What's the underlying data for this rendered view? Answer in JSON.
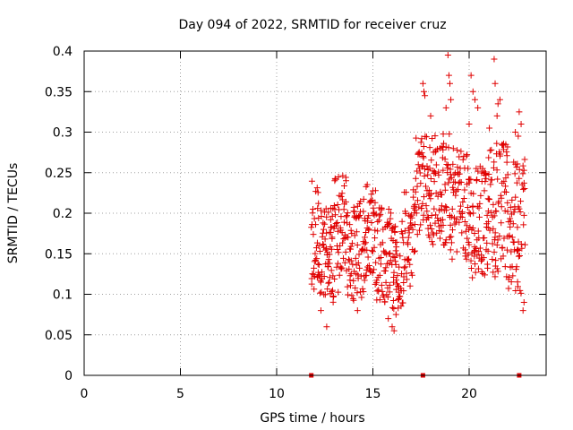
{
  "chart_data": {
    "type": "scatter",
    "title": "Day 094 of 2022, SRMTID for receiver cruz",
    "xlabel": "GPS time / hours",
    "ylabel": "SRMTID / TECUs",
    "xlim": [
      0,
      24
    ],
    "ylim": [
      0,
      0.4
    ],
    "x_ticks": [
      0,
      5,
      10,
      15,
      20
    ],
    "x_tick_labels": [
      "0",
      "5",
      "10",
      "15",
      "20"
    ],
    "y_ticks": [
      0,
      0.05,
      0.1,
      0.15,
      0.2,
      0.25,
      0.3,
      0.35,
      0.4
    ],
    "y_tick_labels": [
      "0",
      "0.05",
      "0.1",
      "0.15",
      "0.2",
      "0.25",
      "0.3",
      "0.35",
      "0.4"
    ],
    "grid": true,
    "legend": "none",
    "marker": "plus",
    "color": "#e00000",
    "series": [
      {
        "segments": [
          {
            "x_start": 11.8,
            "x_end": 12.2,
            "step": 0.02,
            "y_min": 0.1,
            "y_max": 0.24
          },
          {
            "x_start": 12.2,
            "x_end": 13.0,
            "step": 0.02,
            "y_min": 0.09,
            "y_max": 0.21
          },
          {
            "x_start": 13.0,
            "x_end": 13.6,
            "step": 0.02,
            "y_min": 0.1,
            "y_max": 0.25
          },
          {
            "x_start": 13.6,
            "x_end": 14.5,
            "step": 0.02,
            "y_min": 0.09,
            "y_max": 0.22
          },
          {
            "x_start": 14.5,
            "x_end": 15.2,
            "step": 0.02,
            "y_min": 0.11,
            "y_max": 0.24
          },
          {
            "x_start": 15.2,
            "x_end": 16.0,
            "step": 0.02,
            "y_min": 0.09,
            "y_max": 0.21
          },
          {
            "x_start": 16.0,
            "x_end": 16.6,
            "step": 0.02,
            "y_min": 0.08,
            "y_max": 0.19
          },
          {
            "x_start": 16.6,
            "x_end": 17.2,
            "step": 0.02,
            "y_min": 0.11,
            "y_max": 0.23
          },
          {
            "x_start": 17.2,
            "x_end": 18.0,
            "step": 0.02,
            "y_min": 0.17,
            "y_max": 0.3
          },
          {
            "x_start": 18.0,
            "x_end": 19.0,
            "step": 0.02,
            "y_min": 0.16,
            "y_max": 0.3
          },
          {
            "x_start": 19.0,
            "x_end": 20.0,
            "step": 0.02,
            "y_min": 0.14,
            "y_max": 0.28
          },
          {
            "x_start": 20.0,
            "x_end": 21.0,
            "step": 0.02,
            "y_min": 0.12,
            "y_max": 0.26
          },
          {
            "x_start": 21.0,
            "x_end": 22.0,
            "step": 0.02,
            "y_min": 0.12,
            "y_max": 0.29
          },
          {
            "x_start": 22.0,
            "x_end": 22.9,
            "step": 0.02,
            "y_min": 0.1,
            "y_max": 0.27
          }
        ],
        "extra_points": [
          [
            17.6,
            0.36
          ],
          [
            17.65,
            0.35
          ],
          [
            17.7,
            0.345
          ],
          [
            18.0,
            0.32
          ],
          [
            18.9,
            0.395
          ],
          [
            18.95,
            0.37
          ],
          [
            19.0,
            0.36
          ],
          [
            19.05,
            0.34
          ],
          [
            18.8,
            0.33
          ],
          [
            20.1,
            0.37
          ],
          [
            20.2,
            0.35
          ],
          [
            20.3,
            0.34
          ],
          [
            20.45,
            0.33
          ],
          [
            20.0,
            0.31
          ],
          [
            21.3,
            0.39
          ],
          [
            21.35,
            0.36
          ],
          [
            21.6,
            0.34
          ],
          [
            21.5,
            0.335
          ],
          [
            21.45,
            0.32
          ],
          [
            22.4,
            0.3
          ],
          [
            22.6,
            0.325
          ],
          [
            22.7,
            0.31
          ],
          [
            22.55,
            0.295
          ],
          [
            21.05,
            0.305
          ],
          [
            12.6,
            0.06
          ],
          [
            16.1,
            0.055
          ],
          [
            16.0,
            0.06
          ],
          [
            15.8,
            0.07
          ],
          [
            16.2,
            0.075
          ],
          [
            12.3,
            0.08
          ],
          [
            14.2,
            0.08
          ],
          [
            22.8,
            0.08
          ],
          [
            22.85,
            0.09
          ]
        ],
        "zero_points": [
          11.8,
          17.6,
          22.6
        ]
      }
    ]
  }
}
